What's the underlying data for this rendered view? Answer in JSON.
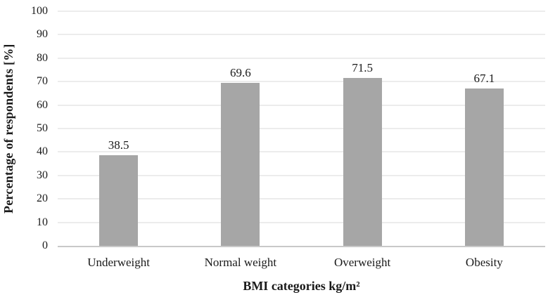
{
  "chart_data": {
    "type": "bar",
    "title": "",
    "categories": [
      "Underweight",
      "Normal weight",
      "Overweight",
      "Obesity"
    ],
    "values": [
      38.5,
      69.6,
      71.5,
      67.1
    ],
    "value_labels": [
      "38.5",
      "69.6",
      "71.5",
      "67.1"
    ],
    "xlabel": "BMI categories kg/m²",
    "ylabel": "Percentage of respondents [%]",
    "ylim": [
      0,
      100
    ],
    "ytick_step": 10,
    "ytick_labels": [
      "0",
      "10",
      "20",
      "30",
      "40",
      "50",
      "60",
      "70",
      "80",
      "90",
      "100"
    ],
    "grid": true,
    "legend": "none",
    "bar_color": "#a6a6a6",
    "gridline_color": "#d9d9d9",
    "axis_line_color": "#c9c9c9",
    "text_color": "#1a1a1a",
    "background_color": "#ffffff"
  }
}
